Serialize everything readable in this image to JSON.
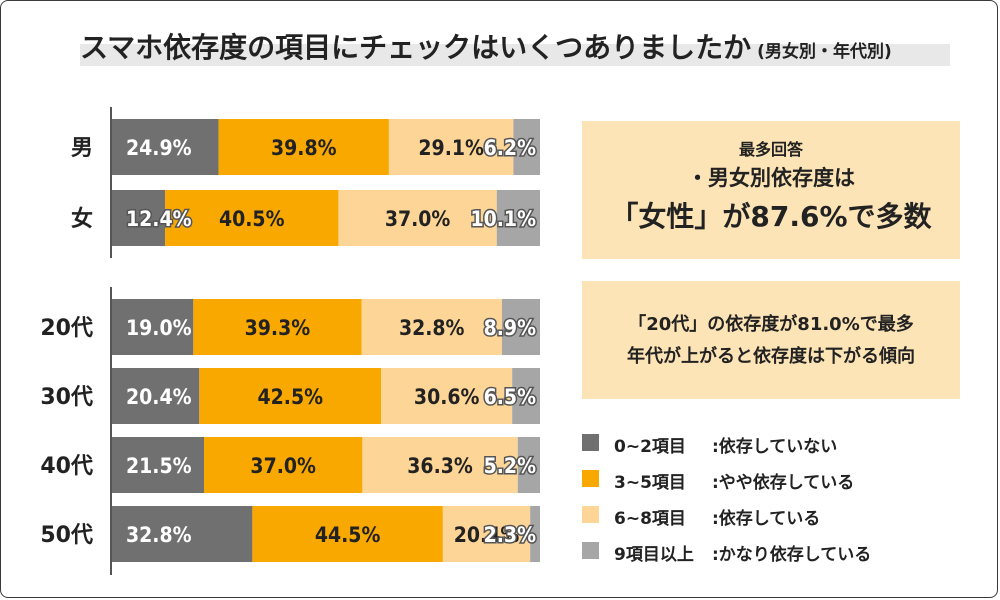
{
  "header": {
    "title": "スマホ依存度の項目にチェックはいくつありましたか",
    "subtitle": "(男女別・年代別)"
  },
  "chart_data": {
    "type": "bar",
    "orientation": "horizontal",
    "stacked": true,
    "normalized": true,
    "groups": [
      {
        "categories": [
          "男",
          "女"
        ]
      },
      {
        "categories": [
          "20代",
          "30代",
          "40代",
          "50代"
        ]
      }
    ],
    "categories": [
      "男",
      "女",
      "20代",
      "30代",
      "40代",
      "50代"
    ],
    "series": [
      {
        "name": "0~2項目",
        "description": ":依存していない",
        "color": "#707070",
        "values": [
          24.9,
          12.4,
          19.0,
          20.4,
          21.5,
          32.8
        ]
      },
      {
        "name": "3~5項目",
        "description": ":やや依存している",
        "color": "#f9a800",
        "values": [
          39.8,
          40.5,
          39.3,
          42.5,
          37.0,
          44.5
        ]
      },
      {
        "name": "6~8項目",
        "description": ":依存している",
        "color": "#fdd596",
        "values": [
          29.1,
          37.0,
          32.8,
          30.6,
          36.3,
          20.4
        ]
      },
      {
        "name": "9項目以上",
        "description": ":かなり依存している",
        "color": "#a6a6a6",
        "values": [
          6.2,
          10.1,
          8.9,
          6.5,
          5.2,
          2.3
        ]
      }
    ],
    "value_suffix": "%",
    "legend_position": "bottom-right",
    "grid": false
  },
  "summary": {
    "label": "最多回答",
    "line1": "・男女別依存度は",
    "line2": "「女性」が87.6%で多数"
  },
  "note": {
    "line1": "「20代」の依存度が81.0%で最多",
    "line2": "年代が上がると依存度は下がる傾向"
  }
}
